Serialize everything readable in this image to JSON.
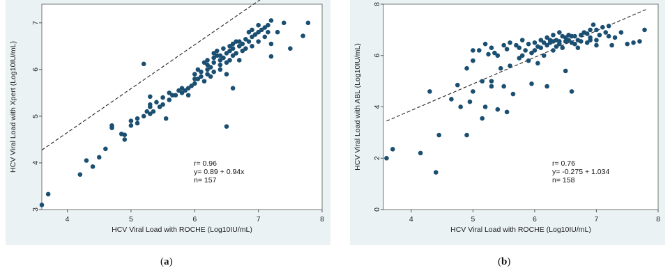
{
  "captions": [
    {
      "open": "(",
      "letter": "a",
      "close": ")"
    },
    {
      "open": "(",
      "letter": "b",
      "close": ")"
    }
  ],
  "chart_data": [
    {
      "type": "scatter",
      "xlabel": "HCV Viral Load with ROCHE (Log10IU/mL)",
      "ylabel": "HCV Viral Load with Xpert (Log10IU/mL)",
      "xlim": [
        3.6,
        8.0
      ],
      "ylim": [
        3.0,
        7.4
      ],
      "xticks": [
        "4",
        "5",
        "6",
        "7",
        "8"
      ],
      "yticks": [
        "3",
        "4",
        "5",
        "6",
        "7"
      ],
      "grid": false,
      "annotations": [
        "r= 0.96",
        "y= 0.89 + 0.94x",
        "n= 157"
      ],
      "fit": {
        "intercept": 0.89,
        "slope": 0.94,
        "x_range": [
          3.6,
          7.8
        ]
      },
      "points": [
        [
          3.6,
          3.1
        ],
        [
          3.7,
          3.33
        ],
        [
          4.2,
          3.75
        ],
        [
          4.3,
          4.05
        ],
        [
          4.4,
          3.92
        ],
        [
          4.5,
          4.12
        ],
        [
          4.6,
          4.3
        ],
        [
          4.7,
          4.75
        ],
        [
          4.7,
          4.8
        ],
        [
          4.85,
          4.62
        ],
        [
          4.9,
          4.5
        ],
        [
          4.9,
          4.6
        ],
        [
          5.0,
          4.9
        ],
        [
          5.0,
          4.8
        ],
        [
          5.1,
          4.85
        ],
        [
          5.1,
          4.95
        ],
        [
          5.2,
          5.0
        ],
        [
          5.2,
          6.12
        ],
        [
          5.25,
          5.1
        ],
        [
          5.3,
          5.05
        ],
        [
          5.3,
          5.2
        ],
        [
          5.3,
          5.25
        ],
        [
          5.3,
          5.42
        ],
        [
          5.35,
          5.1
        ],
        [
          5.4,
          5.3
        ],
        [
          5.5,
          5.25
        ],
        [
          5.5,
          5.4
        ],
        [
          5.55,
          4.95
        ],
        [
          5.6,
          5.5
        ],
        [
          5.6,
          5.35
        ],
        [
          5.7,
          5.45
        ],
        [
          5.8,
          5.6
        ],
        [
          5.8,
          5.5
        ],
        [
          5.85,
          5.55
        ],
        [
          5.9,
          5.6
        ],
        [
          5.9,
          5.45
        ],
        [
          6.0,
          5.7
        ],
        [
          6.0,
          5.8
        ],
        [
          6.0,
          5.9
        ],
        [
          6.05,
          6.0
        ],
        [
          6.1,
          5.95
        ],
        [
          6.1,
          5.85
        ],
        [
          6.15,
          5.75
        ],
        [
          6.2,
          5.9
        ],
        [
          6.2,
          6.0
        ],
        [
          6.2,
          6.1
        ],
        [
          6.25,
          6.05
        ],
        [
          6.3,
          6.15
        ],
        [
          6.3,
          6.25
        ],
        [
          6.3,
          5.95
        ],
        [
          6.35,
          6.3
        ],
        [
          6.35,
          6.4
        ],
        [
          6.4,
          6.1
        ],
        [
          6.4,
          6.2
        ],
        [
          6.4,
          6.3
        ],
        [
          6.45,
          6.25
        ],
        [
          6.5,
          6.35
        ],
        [
          6.5,
          6.15
        ],
        [
          6.5,
          5.9
        ],
        [
          6.5,
          4.78
        ],
        [
          6.55,
          6.4
        ],
        [
          6.55,
          6.5
        ],
        [
          6.6,
          6.3
        ],
        [
          6.6,
          5.6
        ],
        [
          6.6,
          6.45
        ],
        [
          6.65,
          6.35
        ],
        [
          6.7,
          6.5
        ],
        [
          6.7,
          6.6
        ],
        [
          6.7,
          6.2
        ],
        [
          6.75,
          6.55
        ],
        [
          6.8,
          6.45
        ],
        [
          6.8,
          6.65
        ],
        [
          6.85,
          6.6
        ],
        [
          6.9,
          6.7
        ],
        [
          6.9,
          6.5
        ],
        [
          6.95,
          6.75
        ],
        [
          7.0,
          6.8
        ],
        [
          7.0,
          6.6
        ],
        [
          7.05,
          6.85
        ],
        [
          7.1,
          6.9
        ],
        [
          7.1,
          6.7
        ],
        [
          7.15,
          6.95
        ],
        [
          7.2,
          7.05
        ],
        [
          7.2,
          6.55
        ],
        [
          7.2,
          6.28
        ],
        [
          7.3,
          6.8
        ],
        [
          7.4,
          7.0
        ],
        [
          7.5,
          6.45
        ],
        [
          7.7,
          6.72
        ],
        [
          7.78,
          7.0
        ],
        [
          6.25,
          5.85
        ],
        [
          6.45,
          6.45
        ],
        [
          6.15,
          6.15
        ],
        [
          6.6,
          6.55
        ],
        [
          6.75,
          6.4
        ],
        [
          6.05,
          5.8
        ],
        [
          5.95,
          5.65
        ],
        [
          6.4,
          6.0
        ],
        [
          6.85,
          6.8
        ],
        [
          7.0,
          6.95
        ],
        [
          6.55,
          6.2
        ],
        [
          6.3,
          6.35
        ],
        [
          5.65,
          5.45
        ],
        [
          5.45,
          5.2
        ],
        [
          5.75,
          5.55
        ],
        [
          6.2,
          6.2
        ],
        [
          6.65,
          6.6
        ],
        [
          6.9,
          6.85
        ],
        [
          7.15,
          6.8
        ]
      ]
    },
    {
      "type": "scatter",
      "xlabel": "HCV Viral Load with ROCHE (Log10IU/mL)",
      "ylabel": "HCV Viral Load with ABL (Log10IU/mL)",
      "xlim": [
        3.55,
        8.0
      ],
      "ylim": [
        0,
        8
      ],
      "xticks": [
        "4",
        "5",
        "6",
        "7",
        "8"
      ],
      "yticks": [
        "0",
        "2",
        "4",
        "6",
        "8"
      ],
      "grid": false,
      "annotations": [
        "r= 0.76",
        "y= -0.275 + 1.034",
        "n= 158"
      ],
      "fit": {
        "intercept": -0.275,
        "slope": 1.034,
        "x_range": [
          3.6,
          7.8
        ]
      },
      "points": [
        [
          3.6,
          2.0
        ],
        [
          3.7,
          2.35
        ],
        [
          4.15,
          2.2
        ],
        [
          4.3,
          4.6
        ],
        [
          4.4,
          1.45
        ],
        [
          4.45,
          2.9
        ],
        [
          4.65,
          4.3
        ],
        [
          4.75,
          4.85
        ],
        [
          4.8,
          4.0
        ],
        [
          4.9,
          5.5
        ],
        [
          4.9,
          2.9
        ],
        [
          4.95,
          4.2
        ],
        [
          5.0,
          4.6
        ],
        [
          5.0,
          5.8
        ],
        [
          5.0,
          6.2
        ],
        [
          5.1,
          6.2
        ],
        [
          5.15,
          5.0
        ],
        [
          5.15,
          3.55
        ],
        [
          5.2,
          6.45
        ],
        [
          5.2,
          4.0
        ],
        [
          5.3,
          4.8
        ],
        [
          5.3,
          5.0
        ],
        [
          5.3,
          6.3
        ],
        [
          5.35,
          6.1
        ],
        [
          5.4,
          6.0
        ],
        [
          5.4,
          3.9
        ],
        [
          5.45,
          5.5
        ],
        [
          5.5,
          6.4
        ],
        [
          5.5,
          4.8
        ],
        [
          5.55,
          3.8
        ],
        [
          5.6,
          6.5
        ],
        [
          5.6,
          5.6
        ],
        [
          5.65,
          4.5
        ],
        [
          5.7,
          6.4
        ],
        [
          5.75,
          6.3
        ],
        [
          5.8,
          6.6
        ],
        [
          5.8,
          6.0
        ],
        [
          5.85,
          6.2
        ],
        [
          5.9,
          6.45
        ],
        [
          5.9,
          5.8
        ],
        [
          5.95,
          4.9
        ],
        [
          6.0,
          6.5
        ],
        [
          6.0,
          6.2
        ],
        [
          6.05,
          5.7
        ],
        [
          6.1,
          6.6
        ],
        [
          6.1,
          6.3
        ],
        [
          6.15,
          6.0
        ],
        [
          6.2,
          6.7
        ],
        [
          6.2,
          6.4
        ],
        [
          6.2,
          4.8
        ],
        [
          6.25,
          6.5
        ],
        [
          6.3,
          6.8
        ],
        [
          6.3,
          6.2
        ],
        [
          6.35,
          6.6
        ],
        [
          6.4,
          6.9
        ],
        [
          6.4,
          6.45
        ],
        [
          6.45,
          6.3
        ],
        [
          6.5,
          6.7
        ],
        [
          6.5,
          6.55
        ],
        [
          6.5,
          5.4
        ],
        [
          6.55,
          6.8
        ],
        [
          6.6,
          6.5
        ],
        [
          6.6,
          4.6
        ],
        [
          6.65,
          6.75
        ],
        [
          6.7,
          6.6
        ],
        [
          6.7,
          6.3
        ],
        [
          6.75,
          6.8
        ],
        [
          6.8,
          6.9
        ],
        [
          6.85,
          6.5
        ],
        [
          6.9,
          7.0
        ],
        [
          6.9,
          6.7
        ],
        [
          6.95,
          7.2
        ],
        [
          7.0,
          6.6
        ],
        [
          7.0,
          7.0
        ],
        [
          7.05,
          6.8
        ],
        [
          7.1,
          7.1
        ],
        [
          7.15,
          6.9
        ],
        [
          7.2,
          7.15
        ],
        [
          7.25,
          6.4
        ],
        [
          7.3,
          6.7
        ],
        [
          7.4,
          6.9
        ],
        [
          7.5,
          6.45
        ],
        [
          7.6,
          6.5
        ],
        [
          7.7,
          6.55
        ],
        [
          7.78,
          7.0
        ],
        [
          6.25,
          6.6
        ],
        [
          6.45,
          6.75
        ],
        [
          6.55,
          6.6
        ],
        [
          6.15,
          6.5
        ],
        [
          6.35,
          6.35
        ],
        [
          6.75,
          6.55
        ],
        [
          6.05,
          6.35
        ],
        [
          5.95,
          6.1
        ],
        [
          6.65,
          6.45
        ],
        [
          6.85,
          6.85
        ],
        [
          7.0,
          6.4
        ],
        [
          5.75,
          5.9
        ],
        [
          5.55,
          6.25
        ],
        [
          5.25,
          6.05
        ],
        [
          6.3,
          6.55
        ],
        [
          6.6,
          6.75
        ],
        [
          6.4,
          6.55
        ],
        [
          6.9,
          6.6
        ],
        [
          7.2,
          6.75
        ]
      ]
    }
  ]
}
